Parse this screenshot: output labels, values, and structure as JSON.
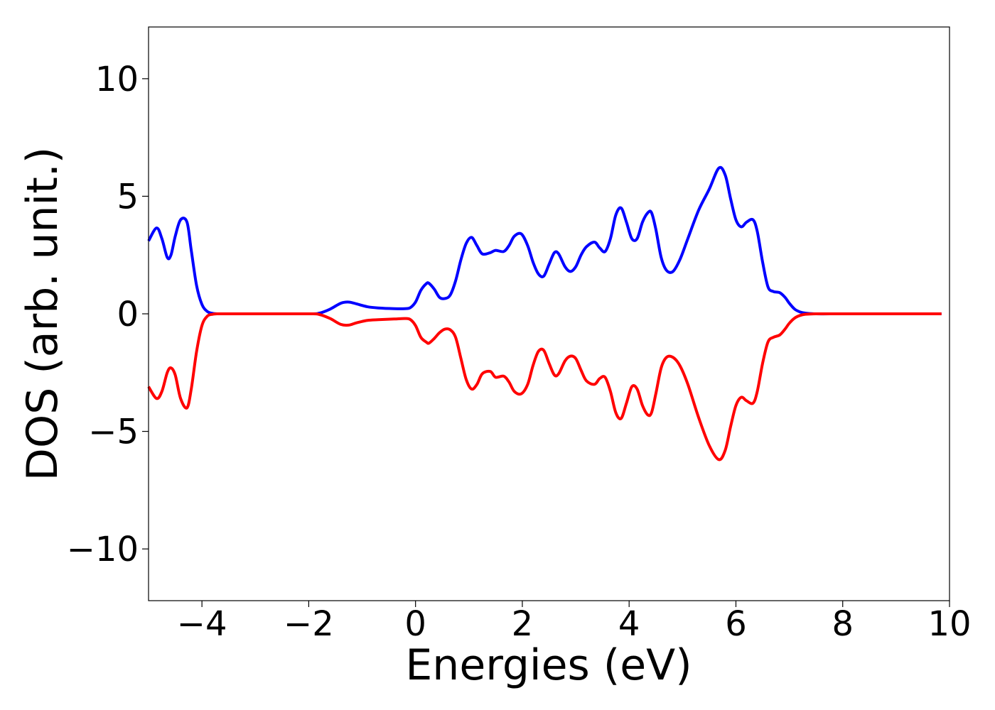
{
  "chart_data": {
    "type": "line",
    "xlabel": "Energies (eV)",
    "ylabel": "DOS (arb. unit.)",
    "xlim": [
      -5,
      10
    ],
    "ylim": [
      -12.2,
      12.2
    ],
    "xticks": [
      -4,
      -2,
      0,
      2,
      4,
      6,
      8,
      10
    ],
    "xtick_labels": [
      "−4",
      "−2",
      "0",
      "2",
      "4",
      "6",
      "8",
      "10"
    ],
    "yticks": [
      -10,
      -5,
      0,
      5,
      10
    ],
    "ytick_labels": [
      "−10",
      "−5",
      "0",
      "5",
      "10"
    ],
    "grid": false,
    "series": [
      {
        "color": "#0000ff",
        "x": [
          -5.0,
          -4.85,
          -4.75,
          -4.65,
          -4.58,
          -4.5,
          -4.4,
          -4.28,
          -4.2,
          -4.1,
          -4.0,
          -3.9,
          -3.8,
          -3.7,
          -3.6,
          -3.0,
          -2.0,
          -1.8,
          -1.6,
          -1.4,
          -1.25,
          -1.1,
          -0.9,
          -0.7,
          -0.4,
          -0.2,
          -0.1,
          0.0,
          0.1,
          0.2,
          0.25,
          0.35,
          0.45,
          0.55,
          0.65,
          0.75,
          0.85,
          0.95,
          1.05,
          1.15,
          1.25,
          1.4,
          1.5,
          1.65,
          1.75,
          1.85,
          1.98,
          2.1,
          2.2,
          2.3,
          2.4,
          2.5,
          2.6,
          2.68,
          2.8,
          2.9,
          3.0,
          3.1,
          3.2,
          3.35,
          3.45,
          3.55,
          3.65,
          3.75,
          3.85,
          3.95,
          4.05,
          4.15,
          4.25,
          4.35,
          4.42,
          4.5,
          4.6,
          4.7,
          4.82,
          4.95,
          5.1,
          5.3,
          5.5,
          5.68,
          5.8,
          5.9,
          6.0,
          6.1,
          6.2,
          6.32,
          6.4,
          6.5,
          6.6,
          6.7,
          6.82,
          6.92,
          7.0,
          7.1,
          7.2,
          7.3,
          7.5,
          8.0,
          9.0,
          9.85
        ],
        "y": [
          3.1,
          3.65,
          3.2,
          2.4,
          2.5,
          3.3,
          4.0,
          3.9,
          2.7,
          1.2,
          0.4,
          0.1,
          0.02,
          0.0,
          0.0,
          0.0,
          0.0,
          0.03,
          0.2,
          0.45,
          0.5,
          0.42,
          0.3,
          0.25,
          0.22,
          0.22,
          0.26,
          0.5,
          1.0,
          1.28,
          1.3,
          1.05,
          0.7,
          0.65,
          0.8,
          1.4,
          2.3,
          3.0,
          3.25,
          2.9,
          2.55,
          2.6,
          2.7,
          2.65,
          2.9,
          3.3,
          3.4,
          2.9,
          2.2,
          1.7,
          1.6,
          2.1,
          2.6,
          2.55,
          2.0,
          1.8,
          2.0,
          2.5,
          2.85,
          3.05,
          2.8,
          2.65,
          3.2,
          4.2,
          4.5,
          3.9,
          3.2,
          3.2,
          3.9,
          4.3,
          4.3,
          3.6,
          2.4,
          1.85,
          1.8,
          2.3,
          3.2,
          4.4,
          5.3,
          6.2,
          5.9,
          4.9,
          4.0,
          3.7,
          3.9,
          4.0,
          3.5,
          2.2,
          1.15,
          0.95,
          0.9,
          0.7,
          0.45,
          0.2,
          0.08,
          0.03,
          0.0,
          0.0,
          0.0,
          0.0
        ]
      },
      {
        "color": "#ff0000",
        "x": [
          -5.0,
          -4.85,
          -4.75,
          -4.65,
          -4.58,
          -4.5,
          -4.4,
          -4.28,
          -4.2,
          -4.1,
          -4.0,
          -3.9,
          -3.8,
          -3.7,
          -3.6,
          -3.0,
          -2.0,
          -1.8,
          -1.6,
          -1.4,
          -1.25,
          -1.1,
          -0.9,
          -0.7,
          -0.4,
          -0.2,
          -0.1,
          0.0,
          0.1,
          0.2,
          0.25,
          0.35,
          0.45,
          0.55,
          0.65,
          0.75,
          0.85,
          0.95,
          1.05,
          1.15,
          1.25,
          1.4,
          1.5,
          1.65,
          1.75,
          1.85,
          1.98,
          2.1,
          2.2,
          2.3,
          2.4,
          2.5,
          2.6,
          2.68,
          2.8,
          2.9,
          3.0,
          3.1,
          3.2,
          3.35,
          3.45,
          3.55,
          3.65,
          3.75,
          3.85,
          3.95,
          4.05,
          4.15,
          4.25,
          4.35,
          4.42,
          4.5,
          4.6,
          4.7,
          4.82,
          4.95,
          5.1,
          5.3,
          5.5,
          5.68,
          5.8,
          5.9,
          6.0,
          6.1,
          6.2,
          6.32,
          6.4,
          6.5,
          6.6,
          6.7,
          6.82,
          6.92,
          7.0,
          7.1,
          7.2,
          7.3,
          7.5,
          8.0,
          9.0,
          9.85
        ],
        "y": [
          -3.1,
          -3.6,
          -3.3,
          -2.5,
          -2.3,
          -2.6,
          -3.6,
          -4.0,
          -3.2,
          -1.6,
          -0.5,
          -0.1,
          -0.02,
          0.0,
          0.0,
          0.0,
          0.0,
          -0.03,
          -0.2,
          -0.45,
          -0.48,
          -0.38,
          -0.28,
          -0.25,
          -0.22,
          -0.2,
          -0.24,
          -0.5,
          -1.0,
          -1.2,
          -1.25,
          -1.05,
          -0.8,
          -0.65,
          -0.68,
          -1.0,
          -1.9,
          -2.8,
          -3.2,
          -3.0,
          -2.55,
          -2.45,
          -2.7,
          -2.65,
          -2.9,
          -3.3,
          -3.4,
          -3.0,
          -2.2,
          -1.6,
          -1.55,
          -2.1,
          -2.6,
          -2.55,
          -2.0,
          -1.8,
          -1.9,
          -2.4,
          -2.85,
          -3.0,
          -2.75,
          -2.7,
          -3.3,
          -4.2,
          -4.45,
          -3.8,
          -3.1,
          -3.2,
          -3.9,
          -4.3,
          -4.2,
          -3.4,
          -2.3,
          -1.85,
          -1.85,
          -2.2,
          -3.0,
          -4.4,
          -5.6,
          -6.2,
          -5.8,
          -4.8,
          -3.9,
          -3.55,
          -3.7,
          -3.8,
          -3.3,
          -2.1,
          -1.2,
          -1.0,
          -0.9,
          -0.65,
          -0.4,
          -0.18,
          -0.07,
          -0.02,
          0.0,
          0.0,
          0.0,
          0.0
        ]
      }
    ]
  }
}
